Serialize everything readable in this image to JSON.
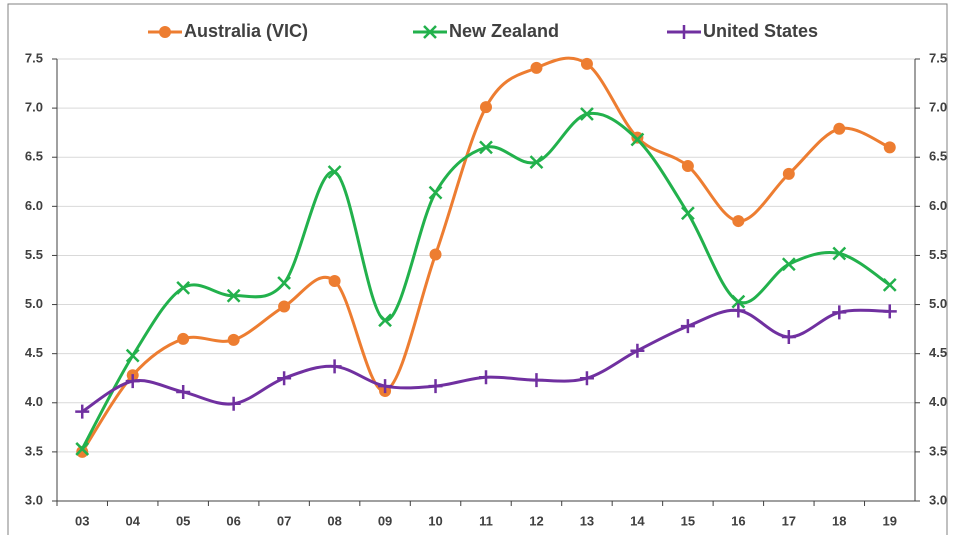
{
  "chart_data": {
    "type": "line",
    "categories": [
      "03",
      "04",
      "05",
      "06",
      "07",
      "08",
      "09",
      "10",
      "11",
      "12",
      "13",
      "14",
      "15",
      "16",
      "17",
      "18",
      "19"
    ],
    "series": [
      {
        "name": "Australia (VIC)",
        "color": "#ed7d31",
        "marker": "circle",
        "values": [
          3.5,
          4.28,
          4.65,
          4.64,
          4.98,
          5.24,
          4.12,
          5.51,
          7.01,
          7.41,
          7.45,
          6.7,
          6.41,
          5.85,
          6.33,
          6.79,
          6.6
        ]
      },
      {
        "name": "New Zealand",
        "color": "#22b14c",
        "marker": "x",
        "values": [
          3.53,
          4.48,
          5.17,
          5.09,
          5.22,
          6.35,
          4.84,
          6.14,
          6.6,
          6.45,
          6.94,
          6.68,
          5.93,
          5.03,
          5.41,
          5.52,
          5.2
        ]
      },
      {
        "name": "United States",
        "color": "#7030a0",
        "marker": "plus",
        "values": [
          3.91,
          4.22,
          4.11,
          3.99,
          4.25,
          4.37,
          4.17,
          4.17,
          4.26,
          4.23,
          4.25,
          4.53,
          4.78,
          4.94,
          4.67,
          4.92,
          4.93
        ]
      }
    ],
    "ylim": [
      3,
      7.5
    ],
    "yticks": [
      {
        "value": 3,
        "label": "3.0"
      },
      3.5,
      {
        "value": 4,
        "label": "4.0"
      },
      4.5,
      {
        "value": 5,
        "label": "5.0"
      },
      5.5,
      {
        "value": 6,
        "label": "6.0"
      },
      6.5,
      {
        "value": 7,
        "label": "7.0"
      },
      7.5
    ],
    "y2lim": [
      3,
      7.5
    ],
    "y2ticks": [
      {
        "value": 3,
        "label": "3.0"
      },
      3.5,
      {
        "value": 4,
        "label": "4.0"
      },
      4.5,
      {
        "value": 5,
        "label": "5.0"
      },
      5.5,
      {
        "value": 6,
        "label": "6.0"
      },
      6.5,
      {
        "value": 7,
        "label": "7.0"
      },
      7.5
    ],
    "grid": true,
    "legend": "top",
    "smooth": true
  }
}
